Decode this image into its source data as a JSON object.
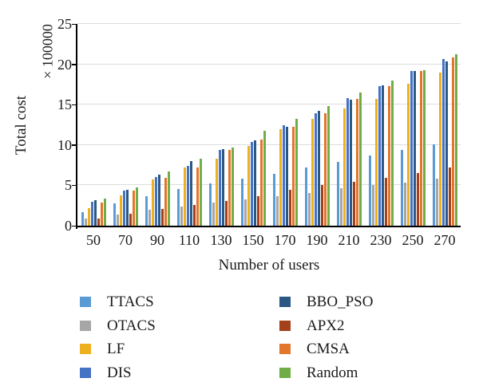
{
  "chart_data": {
    "type": "bar",
    "title": "",
    "xlabel": "Number of users",
    "ylabel": "Total cost",
    "y_axis_multiplier_label": "× 100000",
    "ylim": [
      0,
      25
    ],
    "yticks": [
      0,
      5,
      10,
      15,
      20,
      25
    ],
    "grid": true,
    "legend_position": "bottom-two-columns",
    "categories": [
      50,
      70,
      90,
      110,
      130,
      150,
      170,
      190,
      210,
      230,
      250,
      270
    ],
    "series": [
      {
        "name": "TTACS",
        "color": "#5B9BD5",
        "values": [
          1.7,
          2.8,
          3.7,
          4.5,
          5.2,
          5.8,
          6.4,
          7.2,
          7.9,
          8.7,
          9.4,
          10.1
        ]
      },
      {
        "name": "OTACS",
        "color": "#A6A6A6",
        "values": [
          0.9,
          1.4,
          2.0,
          2.4,
          2.9,
          3.3,
          3.7,
          4.1,
          4.6,
          5.0,
          5.3,
          5.8
        ]
      },
      {
        "name": "LF",
        "color": "#EDB01E",
        "values": [
          2.2,
          3.8,
          5.7,
          7.2,
          8.3,
          9.9,
          12.0,
          13.2,
          14.5,
          15.7,
          17.6,
          19.0
        ]
      },
      {
        "name": "DIS",
        "color": "#4472C4",
        "values": [
          3.0,
          4.3,
          6.0,
          7.4,
          9.4,
          10.4,
          12.5,
          13.9,
          15.8,
          17.3,
          19.2,
          20.7
        ]
      },
      {
        "name": "BBO_PSO",
        "color": "#2A5783",
        "values": [
          3.2,
          4.4,
          6.3,
          8.0,
          9.5,
          10.6,
          12.3,
          14.2,
          15.6,
          17.4,
          19.2,
          20.4
        ]
      },
      {
        "name": "APX2",
        "color": "#A2411A",
        "values": [
          0.9,
          1.5,
          2.1,
          2.6,
          3.1,
          3.7,
          4.4,
          5.0,
          5.4,
          5.9,
          6.5,
          7.2
        ]
      },
      {
        "name": "CMSA",
        "color": "#E2762B",
        "values": [
          2.9,
          4.3,
          5.9,
          7.2,
          9.4,
          10.7,
          12.3,
          13.9,
          15.7,
          17.3,
          19.2,
          20.9
        ]
      },
      {
        "name": "Random",
        "color": "#70AD47",
        "values": [
          3.4,
          4.7,
          6.7,
          8.3,
          9.7,
          11.8,
          13.2,
          14.8,
          16.5,
          18.0,
          19.3,
          21.2
        ]
      }
    ]
  }
}
